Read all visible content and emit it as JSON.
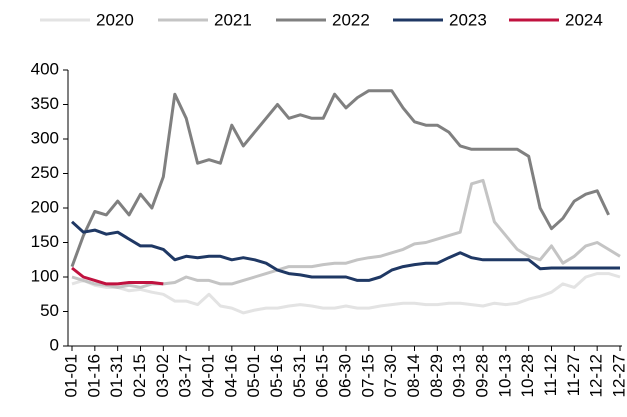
{
  "chart_data": {
    "type": "line",
    "categories": [
      "01-01",
      null,
      "01-16",
      null,
      "01-31",
      null,
      "02-15",
      null,
      "03-02",
      null,
      "03-17",
      null,
      "04-01",
      null,
      "04-16",
      null,
      "05-01",
      null,
      "05-16",
      null,
      "05-31",
      null,
      "06-15",
      null,
      "06-30",
      null,
      "07-15",
      null,
      "07-30",
      null,
      "08-14",
      null,
      "08-29",
      null,
      "09-13",
      null,
      "09-28",
      null,
      "10-13",
      null,
      "10-28",
      null,
      "11-12",
      null,
      "11-27",
      null,
      "12-12",
      null,
      "12-27"
    ],
    "series": [
      {
        "name": "2020",
        "color": "#e3e3e3",
        "values": [
          90,
          95,
          88,
          85,
          85,
          80,
          82,
          78,
          75,
          65,
          65,
          60,
          75,
          58,
          55,
          48,
          52,
          55,
          55,
          58,
          60,
          58,
          55,
          55,
          58,
          55,
          55,
          58,
          60,
          62,
          62,
          60,
          60,
          62,
          62,
          60,
          58,
          62,
          60,
          62,
          68,
          72,
          78,
          90,
          85,
          100,
          105,
          105,
          100
        ]
      },
      {
        "name": "2021",
        "color": "#c4c4c4",
        "values": [
          100,
          95,
          90,
          88,
          85,
          88,
          85,
          90,
          90,
          92,
          100,
          95,
          95,
          90,
          90,
          95,
          100,
          105,
          110,
          115,
          115,
          115,
          118,
          120,
          120,
          125,
          128,
          130,
          135,
          140,
          148,
          150,
          155,
          160,
          165,
          235,
          240,
          180,
          160,
          140,
          130,
          125,
          145,
          120,
          130,
          145,
          150,
          140,
          130
        ]
      },
      {
        "name": "2022",
        "color": "#808080",
        "values": [
          115,
          160,
          195,
          190,
          210,
          190,
          220,
          200,
          245,
          365,
          330,
          265,
          270,
          265,
          320,
          290,
          310,
          330,
          350,
          330,
          335,
          330,
          330,
          365,
          345,
          360,
          370,
          370,
          370,
          345,
          325,
          320,
          320,
          310,
          290,
          285,
          285,
          285,
          285,
          285,
          275,
          200,
          170,
          185,
          210,
          220,
          225,
          190,
          null
        ]
      },
      {
        "name": "2023",
        "color": "#1f3864",
        "values": [
          180,
          165,
          168,
          162,
          165,
          155,
          145,
          145,
          140,
          125,
          130,
          128,
          130,
          130,
          125,
          128,
          125,
          120,
          110,
          105,
          103,
          100,
          100,
          100,
          100,
          95,
          95,
          100,
          110,
          115,
          118,
          120,
          120,
          128,
          135,
          128,
          125,
          125,
          125,
          125,
          125,
          112,
          113,
          113,
          113,
          113,
          113,
          113,
          113
        ]
      },
      {
        "name": "2024",
        "color": "#c0123f",
        "values": [
          113,
          100,
          95,
          90,
          90,
          92,
          92,
          92,
          90,
          null,
          null,
          null,
          null,
          null,
          null,
          null,
          null,
          null,
          null,
          null,
          null,
          null,
          null,
          null,
          null,
          null,
          null,
          null,
          null,
          null,
          null,
          null,
          null,
          null,
          null,
          null,
          null,
          null,
          null,
          null,
          null,
          null,
          null,
          null,
          null,
          null,
          null,
          null,
          null
        ]
      }
    ],
    "ylim": [
      0,
      400
    ],
    "yticks": [
      0,
      50,
      100,
      150,
      200,
      250,
      300,
      350,
      400
    ],
    "legend": "top",
    "grid": false
  }
}
